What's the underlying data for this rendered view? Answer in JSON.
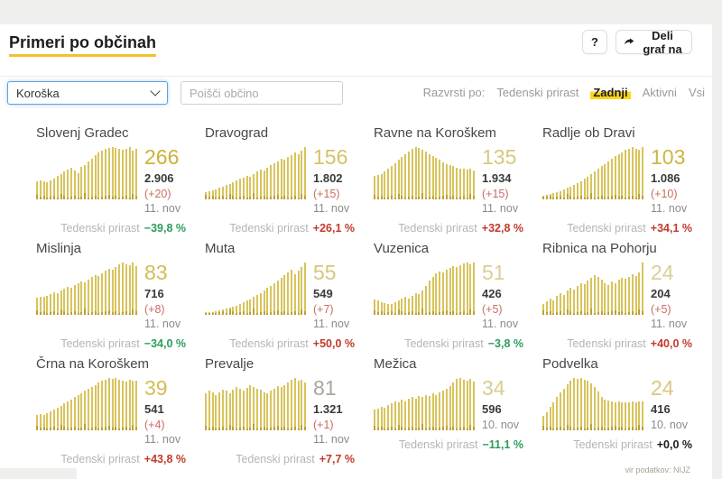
{
  "header": {
    "title": "Primeri po občinah",
    "help_button": "?",
    "share_button": "Deli graf na"
  },
  "filters": {
    "region_select": "Koroška",
    "search_placeholder": "Poišči občino",
    "sort_label": "Razvrsti po:",
    "sort_options": [
      {
        "id": "tedenski-prirast",
        "label": "Tedenski prirast",
        "active": false
      },
      {
        "id": "zadnji",
        "label": "Zadnji",
        "active": true
      },
      {
        "id": "aktivni",
        "label": "Aktivni",
        "active": false
      },
      {
        "id": "vsi",
        "label": "Vsi",
        "active": false
      }
    ]
  },
  "footer": {
    "source": "vir podatkov: NIJZ"
  },
  "colors": {
    "accent_yellow": "#ffd51c",
    "bar_main": "#d8c45c",
    "bar_dark": "#bda133",
    "green": "#2e9c5a",
    "red": "#c23a2c",
    "dark": "#1d1d1b"
  },
  "chart_data": {
    "type": "bar",
    "title": "Primeri po občinah — Koroška",
    "note": "12 small-multiple bar charts, one per municipality; ~30 daily bars each, unlabeled axes; bar values are relative heights 0-100 estimated from pixels",
    "municipalities": [
      {
        "name": "Slovenj Gradec",
        "active": "266",
        "active_color": "#ccb23a",
        "total": "2.906",
        "new": "(+20)",
        "date": "11. nov",
        "growth_label": "Tedenski prirast",
        "growth": "−39,8 %",
        "growth_sentiment": "good",
        "bars": [
          34,
          36,
          35,
          33,
          36,
          40,
          44,
          48,
          53,
          57,
          60,
          55,
          50,
          62,
          66,
          72,
          78,
          84,
          89,
          93,
          96,
          98,
          100,
          98,
          96,
          95,
          97,
          100,
          93,
          96
        ]
      },
      {
        "name": "Dravograd",
        "active": "156",
        "active_color": "#d4c267",
        "total": "1.802",
        "new": "(+15)",
        "date": "11. nov",
        "growth_label": "Tedenski prirast",
        "growth": "+26,1 %",
        "growth_sentiment": "bad",
        "bars": [
          13,
          15,
          17,
          19,
          22,
          24,
          27,
          30,
          33,
          36,
          39,
          42,
          45,
          43,
          49,
          53,
          57,
          55,
          61,
          65,
          69,
          73,
          77,
          75,
          81,
          85,
          89,
          87,
          93,
          100
        ]
      },
      {
        "name": "Ravne na Koroškem",
        "active": "135",
        "active_color": "#d8c87e",
        "total": "1.934",
        "new": "(+15)",
        "date": "11. nov",
        "growth_label": "Tedenski prirast",
        "growth": "+32,8 %",
        "growth_sentiment": "bad",
        "bars": [
          44,
          46,
          49,
          53,
          58,
          63,
          69,
          75,
          81,
          87,
          92,
          96,
          100,
          98,
          95,
          91,
          87,
          83,
          79,
          75,
          71,
          68,
          65,
          63,
          61,
          59,
          58,
          57,
          59,
          56
        ]
      },
      {
        "name": "Radlje ob Dravi",
        "active": "103",
        "active_color": "#cdb540",
        "total": "1.086",
        "new": "(+10)",
        "date": "11. nov",
        "growth_label": "Tedenski prirast",
        "growth": "+34,1 %",
        "growth_sentiment": "bad",
        "bars": [
          7,
          8,
          10,
          12,
          14,
          16,
          19,
          22,
          25,
          28,
          31,
          35,
          39,
          43,
          48,
          53,
          58,
          63,
          68,
          73,
          78,
          82,
          86,
          90,
          94,
          97,
          100,
          97,
          94,
          100
        ]
      },
      {
        "name": "Mislinja",
        "active": "83",
        "active_color": "#d2bd55",
        "total": "716",
        "new": "(+8)",
        "date": "11. nov",
        "growth_label": "Tedenski prirast",
        "growth": "−34,0 %",
        "growth_sentiment": "good",
        "bars": [
          33,
          35,
          34,
          37,
          40,
          43,
          41,
          46,
          50,
          54,
          52,
          57,
          61,
          64,
          62,
          68,
          72,
          76,
          74,
          80,
          84,
          88,
          86,
          92,
          96,
          100,
          97,
          95,
          100,
          93
        ]
      },
      {
        "name": "Muta",
        "active": "55",
        "active_color": "#d7c77c",
        "total": "549",
        "new": "(+7)",
        "date": "11. nov",
        "growth_label": "Tedenski prirast",
        "growth": "+50,0 %",
        "growth_sentiment": "bad",
        "bars": [
          5,
          5,
          6,
          7,
          8,
          10,
          12,
          14,
          16,
          18,
          21,
          24,
          27,
          30,
          34,
          38,
          42,
          46,
          51,
          56,
          61,
          66,
          71,
          76,
          81,
          86,
          78,
          85,
          92,
          100
        ]
      },
      {
        "name": "Vuzenica",
        "active": "51",
        "active_color": "#dbcf96",
        "total": "426",
        "new": "(+5)",
        "date": "11. nov",
        "growth_label": "Tedenski prirast",
        "growth": "−3,8 %",
        "growth_sentiment": "good",
        "bars": [
          30,
          28,
          25,
          22,
          20,
          21,
          24,
          27,
          31,
          34,
          31,
          36,
          41,
          39,
          46,
          56,
          66,
          73,
          79,
          83,
          81,
          86,
          89,
          93,
          91,
          95,
          98,
          100,
          96,
          100
        ]
      },
      {
        "name": "Ribnica na Pohorju",
        "active": "24",
        "active_color": "#dbcf96",
        "total": "204",
        "new": "(+5)",
        "date": "11. nov",
        "growth_label": "Tedenski prirast",
        "growth": "+40,0 %",
        "growth_sentiment": "bad",
        "bars": [
          20,
          26,
          31,
          28,
          36,
          41,
          38,
          46,
          51,
          48,
          56,
          61,
          58,
          66,
          71,
          76,
          72,
          67,
          61,
          57,
          64,
          60,
          67,
          71,
          69,
          73,
          77,
          74,
          81,
          100
        ]
      },
      {
        "name": "Črna na Koroškem",
        "active": "39",
        "active_color": "#d2bd55",
        "total": "541",
        "new": "(+4)",
        "date": "11. nov",
        "growth_label": "Tedenski prirast",
        "growth": "+43,8 %",
        "growth_sentiment": "bad",
        "bars": [
          29,
          31,
          30,
          33,
          36,
          39,
          43,
          47,
          51,
          55,
          59,
          63,
          67,
          71,
          75,
          79,
          83,
          87,
          91,
          94,
          97,
          100,
          98,
          100,
          97,
          95,
          93,
          96,
          94,
          95
        ]
      },
      {
        "name": "Prevalje",
        "active": "81",
        "active_color": "#aaa69c",
        "total": "1.321",
        "new": "(+1)",
        "date": "11. nov",
        "growth_label": "Tedenski prirast",
        "growth": "+7,7 %",
        "growth_sentiment": "bad",
        "bars": [
          70,
          75,
          72,
          67,
          73,
          78,
          76,
          71,
          77,
          82,
          79,
          75,
          81,
          86,
          83,
          79,
          77,
          73,
          71,
          76,
          80,
          84,
          82,
          87,
          91,
          96,
          100,
          94,
          97,
          92
        ]
      },
      {
        "name": "Mežica",
        "active": "34",
        "active_color": "#d9cd8f",
        "total": "596",
        "new": null,
        "date": "10. nov",
        "growth_label": "Tedenski prirast",
        "growth": "−11,1 %",
        "growth_sentiment": "good",
        "bars": [
          40,
          42,
          45,
          43,
          48,
          52,
          55,
          53,
          58,
          56,
          60,
          63,
          61,
          66,
          64,
          68,
          66,
          70,
          68,
          72,
          75,
          79,
          84,
          91,
          98,
          100,
          97,
          95,
          98,
          93
        ]
      },
      {
        "name": "Podvelka",
        "active": "24",
        "active_color": "#d8c87e",
        "total": "416",
        "new": null,
        "date": "10. nov",
        "growth_label": "Tedenski prirast",
        "growth": "+0,0 %",
        "growth_sentiment": "neutral",
        "bars": [
          28,
          34,
          44,
          54,
          64,
          72,
          80,
          88,
          95,
          100,
          98,
          100,
          97,
          94,
          89,
          83,
          74,
          64,
          59,
          57,
          55,
          54,
          55,
          54,
          53,
          54,
          55,
          54,
          55,
          56
        ]
      }
    ]
  }
}
